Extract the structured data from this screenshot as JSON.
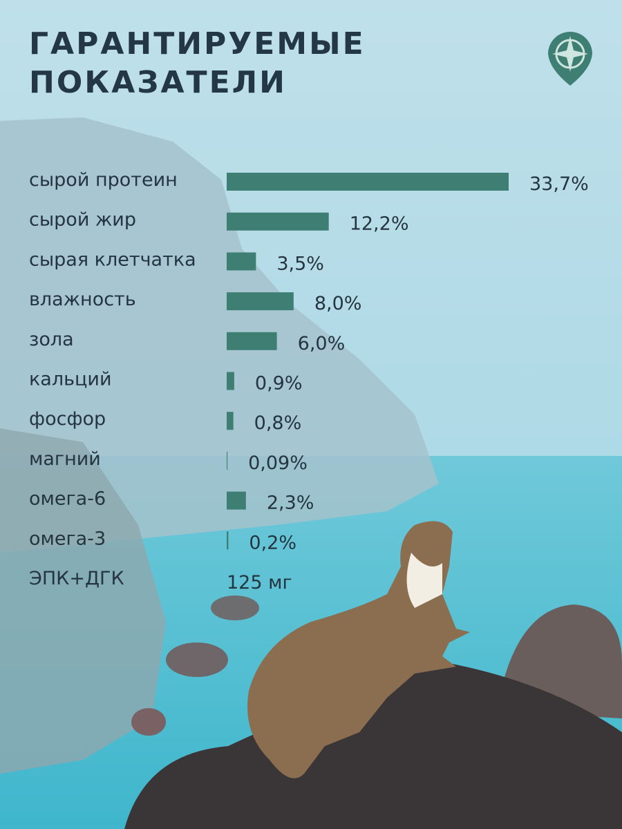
{
  "chart_data": {
    "type": "bar",
    "orientation": "horizontal",
    "title": "ГАРАНТИРУЕМЫЕ ПОКАЗАТЕЛИ",
    "categories": [
      "сырой протеин",
      "сырой жир",
      "сырая клетчатка",
      "влажность",
      "зола",
      "кальций",
      "фосфор",
      "магний",
      "омега-6",
      "омега-3"
    ],
    "values": [
      33.7,
      12.2,
      3.5,
      8.0,
      6.0,
      0.9,
      0.8,
      0.09,
      2.3,
      0.2
    ],
    "value_labels": [
      "33,7%",
      "12,2%",
      "3,5%",
      "8,0%",
      "6,0%",
      "0,9%",
      "0,8%",
      "0,09%",
      "2,3%",
      "0,2%"
    ],
    "color": "#3f7f73",
    "note": {
      "label": "ЭПК+ДГК",
      "text": "125 мг"
    }
  }
}
